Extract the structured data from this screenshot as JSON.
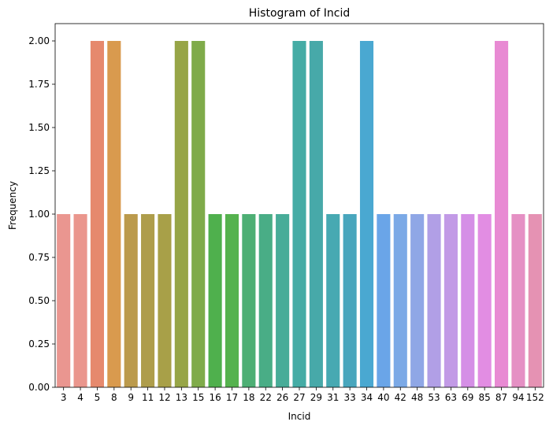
{
  "chart_data": {
    "type": "bar",
    "title": "Histogram of Incid",
    "xlabel": "Incid",
    "ylabel": "Frequency",
    "ylim": [
      0,
      2.1
    ],
    "y_ticks": [
      "0.00",
      "0.25",
      "0.50",
      "0.75",
      "1.00",
      "1.25",
      "1.50",
      "1.75",
      "2.00"
    ],
    "categories": [
      "3",
      "4",
      "5",
      "8",
      "9",
      "11",
      "12",
      "13",
      "15",
      "16",
      "17",
      "18",
      "22",
      "26",
      "27",
      "29",
      "31",
      "33",
      "34",
      "40",
      "42",
      "48",
      "53",
      "63",
      "69",
      "85",
      "87",
      "94",
      "152"
    ],
    "values": [
      1,
      1,
      2,
      2,
      1,
      1,
      1,
      2,
      2,
      1,
      1,
      1,
      1,
      1,
      2,
      2,
      1,
      1,
      2,
      1,
      1,
      1,
      1,
      1,
      1,
      1,
      2,
      1,
      1
    ],
    "colors": [
      "#ea9690",
      "#ea968d",
      "#e6896d",
      "#d99a4e",
      "#bb9a4c",
      "#ae9d4b",
      "#a8a048",
      "#97a547",
      "#7fab4a",
      "#4fb04d",
      "#55b24e",
      "#4daf74",
      "#49ad86",
      "#48ac98",
      "#45aca5",
      "#47a9a9",
      "#47a9b2",
      "#48a6bd",
      "#4aa8d1",
      "#6aa5e8",
      "#7ba9e6",
      "#8fa7e6",
      "#b19fe6",
      "#c29ae6",
      "#d58fe6",
      "#e28de3",
      "#e88ad3",
      "#e590c4",
      "#e592b3"
    ],
    "grid": false,
    "legend": "none"
  }
}
